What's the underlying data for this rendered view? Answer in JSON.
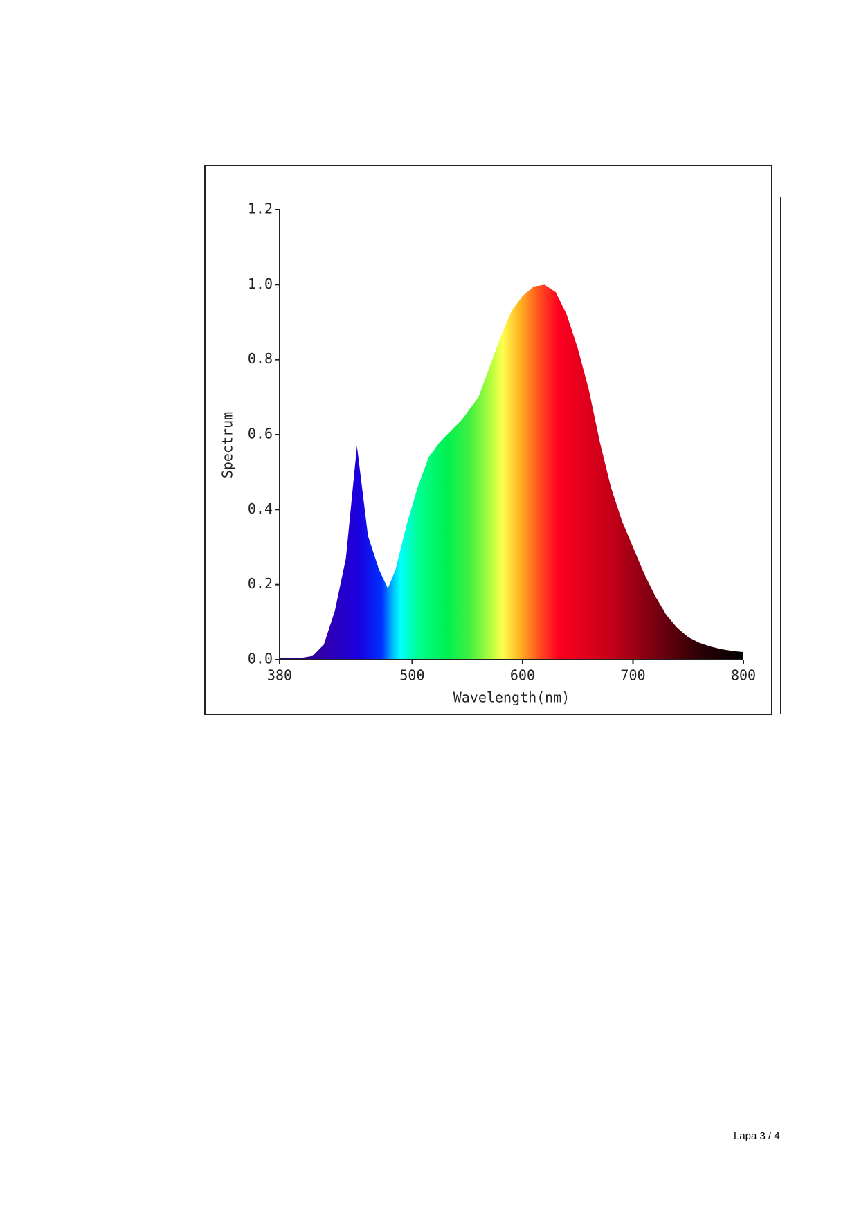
{
  "chart_data": {
    "type": "area",
    "xlabel": "Wavelength(nm)",
    "ylabel": "Spectrum",
    "x": [
      380,
      400,
      410,
      420,
      430,
      440,
      445,
      450,
      455,
      460,
      470,
      478,
      485,
      495,
      505,
      515,
      525,
      535,
      545,
      560,
      570,
      580,
      590,
      600,
      610,
      620,
      630,
      640,
      650,
      660,
      670,
      680,
      690,
      700,
      710,
      720,
      730,
      740,
      750,
      760,
      770,
      780,
      790,
      800
    ],
    "values": [
      0.005,
      0.005,
      0.01,
      0.04,
      0.13,
      0.27,
      0.42,
      0.57,
      0.45,
      0.33,
      0.24,
      0.19,
      0.24,
      0.36,
      0.46,
      0.54,
      0.58,
      0.61,
      0.64,
      0.7,
      0.78,
      0.86,
      0.93,
      0.97,
      0.995,
      1.0,
      0.98,
      0.92,
      0.83,
      0.72,
      0.58,
      0.46,
      0.37,
      0.3,
      0.23,
      0.17,
      0.12,
      0.085,
      0.06,
      0.045,
      0.035,
      0.028,
      0.023,
      0.02
    ],
    "xlim": [
      380,
      800
    ],
    "ylim": [
      0,
      1.2
    ],
    "xticks": [
      380,
      500,
      600,
      700,
      800
    ],
    "yticks": [
      {
        "value": 0,
        "label": "0.0"
      },
      0.2,
      0.4,
      0.6,
      0.8,
      {
        "value": 1,
        "label": "1.0"
      },
      1.2
    ]
  },
  "footer": {
    "page": "Lapa 3 / 4"
  }
}
